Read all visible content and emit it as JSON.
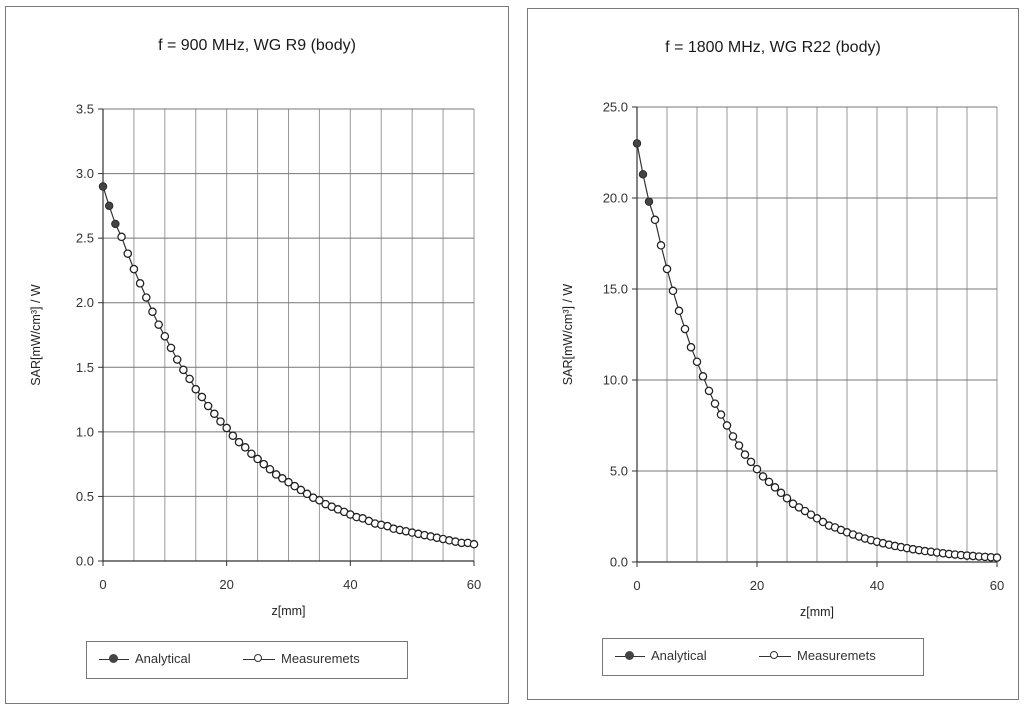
{
  "chart_data": [
    {
      "type": "line",
      "title": "f = 900 MHz, WG R9 (body)",
      "xlabel": "z[mm]",
      "ylabel": "SAR[mW/cm³] / W",
      "xlim": [
        0,
        60
      ],
      "ylim": [
        0,
        3.5
      ],
      "xticks": [
        "0",
        "20",
        "40",
        "60"
      ],
      "yticks": [
        "0.0",
        "0.5",
        "1.0",
        "1.5",
        "2.0",
        "2.5",
        "3.0",
        "3.5"
      ],
      "grid": true,
      "legend": "bottom",
      "series": [
        {
          "name": "Analytical",
          "marker": "filled-circle",
          "x": [
            0,
            1,
            2,
            3,
            4,
            5,
            6,
            7,
            8,
            9,
            10,
            11,
            12,
            13,
            14,
            15,
            16,
            17,
            18,
            19,
            20,
            21,
            22,
            23,
            24,
            25,
            26,
            27,
            28,
            29,
            30,
            31,
            32,
            33,
            34,
            35,
            36,
            37,
            38,
            39,
            40,
            41,
            42,
            43,
            44,
            45,
            46,
            47,
            48,
            49,
            50,
            51,
            52,
            53,
            54,
            55,
            56,
            57,
            58,
            59,
            60
          ],
          "y": [
            2.9,
            2.75,
            2.61,
            2.51,
            2.38,
            2.26,
            2.15,
            2.04,
            1.93,
            1.83,
            1.74,
            1.65,
            1.56,
            1.48,
            1.41,
            1.33,
            1.27,
            1.2,
            1.14,
            1.08,
            1.03,
            0.97,
            0.92,
            0.88,
            0.83,
            0.79,
            0.75,
            0.71,
            0.67,
            0.64,
            0.61,
            0.58,
            0.55,
            0.52,
            0.49,
            0.47,
            0.44,
            0.42,
            0.4,
            0.38,
            0.36,
            0.34,
            0.33,
            0.31,
            0.29,
            0.28,
            0.27,
            0.25,
            0.24,
            0.23,
            0.22,
            0.21,
            0.2,
            0.19,
            0.18,
            0.17,
            0.16,
            0.15,
            0.14,
            0.14,
            0.13
          ]
        },
        {
          "name": "Measuremets",
          "marker": "open-circle",
          "x": [
            3,
            4,
            5,
            6,
            7,
            8,
            9,
            10,
            11,
            12,
            13,
            14,
            15,
            16,
            17,
            18,
            19,
            20,
            21,
            22,
            23,
            24,
            25,
            26,
            27,
            28,
            29,
            30,
            31,
            32,
            33,
            34,
            35,
            36,
            37,
            38,
            39,
            40,
            41,
            42,
            43,
            44,
            45,
            46,
            47,
            48,
            49,
            50,
            51,
            52,
            53,
            54,
            55,
            56,
            57,
            58,
            59,
            60
          ],
          "y": [
            2.51,
            2.38,
            2.26,
            2.15,
            2.04,
            1.93,
            1.83,
            1.74,
            1.65,
            1.56,
            1.48,
            1.41,
            1.33,
            1.27,
            1.2,
            1.14,
            1.08,
            1.03,
            0.97,
            0.92,
            0.88,
            0.83,
            0.79,
            0.75,
            0.71,
            0.67,
            0.64,
            0.61,
            0.58,
            0.55,
            0.52,
            0.49,
            0.47,
            0.44,
            0.42,
            0.4,
            0.38,
            0.36,
            0.34,
            0.33,
            0.31,
            0.29,
            0.28,
            0.27,
            0.25,
            0.24,
            0.23,
            0.22,
            0.21,
            0.2,
            0.19,
            0.18,
            0.17,
            0.16,
            0.15,
            0.14,
            0.14,
            0.13
          ]
        }
      ]
    },
    {
      "type": "line",
      "title": "f = 1800 MHz, WG R22 (body)",
      "xlabel": "z[mm]",
      "ylabel": "SAR[mW/cm³] / W",
      "xlim": [
        0,
        60
      ],
      "ylim": [
        0,
        25
      ],
      "xticks": [
        "0",
        "20",
        "40",
        "60"
      ],
      "yticks": [
        "0.0",
        "5.0",
        "10.0",
        "15.0",
        "20.0",
        "25.0"
      ],
      "grid": true,
      "legend": "bottom",
      "series": [
        {
          "name": "Analytical",
          "marker": "filled-circle",
          "x": [
            0,
            1,
            2,
            3,
            4,
            5,
            6,
            7,
            8,
            9,
            10,
            11,
            12,
            13,
            14,
            15,
            16,
            17,
            18,
            19,
            20,
            21,
            22,
            23,
            24,
            25,
            26,
            27,
            28,
            29,
            30,
            31,
            32,
            33,
            34,
            35,
            36,
            37,
            38,
            39,
            40,
            41,
            42,
            43,
            44,
            45,
            46,
            47,
            48,
            49,
            50,
            51,
            52,
            53,
            54,
            55,
            56,
            57,
            58,
            59,
            60
          ],
          "y": [
            23.0,
            21.3,
            19.8,
            18.8,
            17.4,
            16.1,
            14.9,
            13.8,
            12.8,
            11.8,
            11.0,
            10.2,
            9.4,
            8.7,
            8.1,
            7.5,
            6.9,
            6.4,
            5.9,
            5.5,
            5.1,
            4.7,
            4.4,
            4.1,
            3.8,
            3.5,
            3.2,
            3.0,
            2.8,
            2.6,
            2.4,
            2.2,
            2.0,
            1.9,
            1.76,
            1.63,
            1.51,
            1.4,
            1.29,
            1.2,
            1.11,
            1.03,
            0.95,
            0.88,
            0.82,
            0.76,
            0.7,
            0.65,
            0.6,
            0.56,
            0.52,
            0.48,
            0.44,
            0.41,
            0.38,
            0.35,
            0.33,
            0.3,
            0.28,
            0.26,
            0.24
          ]
        },
        {
          "name": "Measuremets",
          "marker": "open-circle",
          "x": [
            3,
            4,
            5,
            6,
            7,
            8,
            9,
            10,
            11,
            12,
            13,
            14,
            15,
            16,
            17,
            18,
            19,
            20,
            21,
            22,
            23,
            24,
            25,
            26,
            27,
            28,
            29,
            30,
            31,
            32,
            33,
            34,
            35,
            36,
            37,
            38,
            39,
            40,
            41,
            42,
            43,
            44,
            45,
            46,
            47,
            48,
            49,
            50,
            51,
            52,
            53,
            54,
            55,
            56,
            57,
            58,
            59,
            60
          ],
          "y": [
            18.8,
            17.4,
            16.1,
            14.9,
            13.8,
            12.8,
            11.8,
            11.0,
            10.2,
            9.4,
            8.7,
            8.1,
            7.5,
            6.9,
            6.4,
            5.9,
            5.5,
            5.1,
            4.7,
            4.4,
            4.1,
            3.8,
            3.5,
            3.2,
            3.0,
            2.8,
            2.6,
            2.4,
            2.2,
            2.0,
            1.9,
            1.76,
            1.63,
            1.51,
            1.4,
            1.29,
            1.2,
            1.11,
            1.03,
            0.95,
            0.88,
            0.82,
            0.76,
            0.7,
            0.65,
            0.6,
            0.56,
            0.52,
            0.48,
            0.44,
            0.41,
            0.38,
            0.35,
            0.33,
            0.3,
            0.28,
            0.26,
            0.24
          ]
        }
      ]
    }
  ]
}
